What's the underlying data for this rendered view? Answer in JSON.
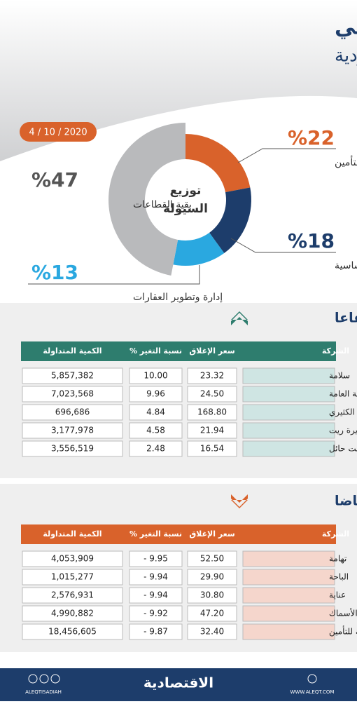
{
  "header": {
    "title": "الأداء اليومي",
    "subtitle": "لسوق الأسهم السعودية",
    "date": "4 / 10 / 2020"
  },
  "chart_data": {
    "type": "pie",
    "title": "توزيع السيولة",
    "categories": [
      "التأمين",
      "المواد الأساسية",
      "إدارة وتطوير العقارات",
      "بقية القطاعات"
    ],
    "values": [
      22,
      18,
      13,
      47
    ],
    "value_labels": [
      "%22",
      "%18",
      "%13",
      "%47"
    ],
    "colors": [
      "#d9622b",
      "#1d3d6b",
      "#2aa8e0",
      "#b9babc"
    ]
  },
  "gainers": {
    "title": "الأكثر ارتفاعا",
    "headers": [
      "الشركة",
      "سعر الإغلاق",
      "نسبة التغير %",
      "الكمية المتداولة"
    ],
    "rows": [
      [
        "سلامة",
        "23.32",
        "10.00",
        "5,857,382"
      ],
      [
        "الخليجية العامة",
        "24.50",
        "9.96",
        "7,023,568"
      ],
      [
        "الكثيري",
        "168.80",
        "4.84",
        "696,686"
      ],
      [
        "الجزيرة ريت",
        "21.94",
        "4.58",
        "3,177,978"
      ],
      [
        "أسمنت حائل",
        "16.54",
        "2.48",
        "3,556,519"
      ]
    ]
  },
  "losers": {
    "title": "الأكثر انخفاضا",
    "headers": [
      "الشركة",
      "سعر الإغلاق",
      "نسبة التغير %",
      "الكمية المتداولة"
    ],
    "rows": [
      [
        "تهامة",
        "52.50",
        "- 9.95",
        "4,053,909"
      ],
      [
        "الباحة",
        "29.90",
        "- 9.94",
        "1,015,277"
      ],
      [
        "عناية",
        "30.80",
        "- 9.94",
        "2,576,931"
      ],
      [
        "الأسماك",
        "47.20",
        "- 9.92",
        "4,990,882"
      ],
      [
        "أمانة للتأمين",
        "32.40",
        "- 9.87",
        "18,456,605"
      ]
    ]
  },
  "footer": {
    "handle": "ALEQTISADIAH",
    "logo": "الاقتصادية",
    "website": "WWW.ALEQT.COM"
  }
}
